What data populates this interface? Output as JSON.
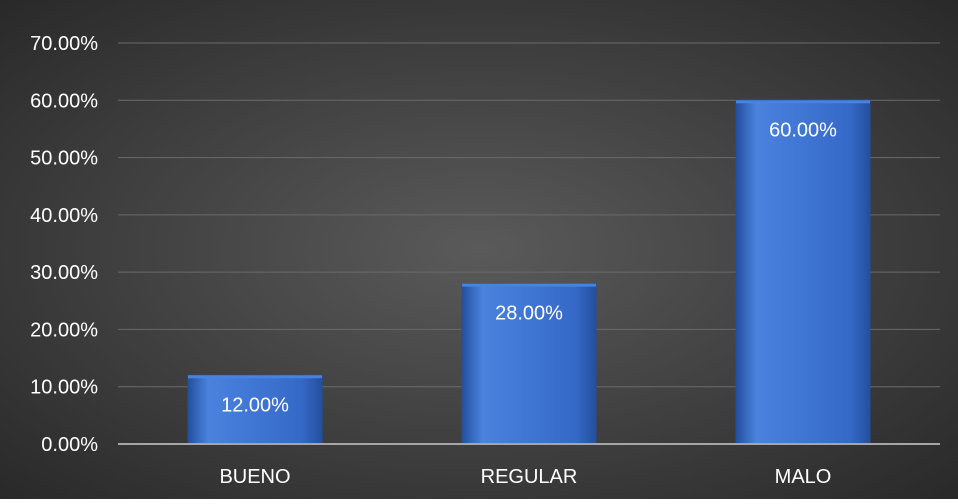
{
  "chart_data": {
    "type": "bar",
    "categories": [
      "BUENO",
      "REGULAR",
      "MALO"
    ],
    "values": [
      12.0,
      28.0,
      60.0
    ],
    "data_labels": [
      "12.00%",
      "28.00%",
      "60.00%"
    ],
    "y_ticks": [
      0,
      10,
      20,
      30,
      40,
      50,
      60,
      70
    ],
    "y_tick_labels": [
      "0.00%",
      "10.00%",
      "20.00%",
      "30.00%",
      "40.00%",
      "50.00%",
      "60.00%",
      "70.00%"
    ],
    "ylim": [
      0,
      70
    ],
    "y_unit": "%",
    "title": "",
    "xlabel": "",
    "ylabel": "",
    "grid": true,
    "legend": "none",
    "colors": {
      "background_center": "#5a5a5a",
      "background_edge": "#262626",
      "bar_fill": "#3569c8",
      "bar_light": "#4a82de",
      "bar_dark": "#244f9e",
      "gridline": "#6a6a6a",
      "axis_line": "#a6a6a6",
      "text": "#ffffff"
    }
  }
}
